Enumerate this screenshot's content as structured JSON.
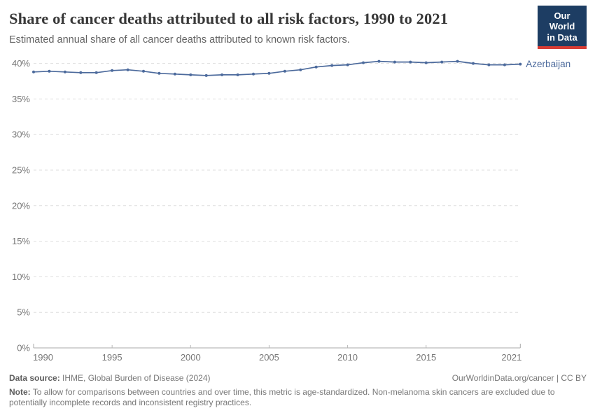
{
  "header": {
    "title": "Share of cancer deaths attributed to all risk factors, 1990 to 2021",
    "subtitle": "Estimated annual share of all cancer deaths attributed to known risk factors.",
    "logo": {
      "line1": "Our World",
      "line2": "in Data",
      "bg_color": "#1d3d63",
      "accent_color": "#d73c34"
    }
  },
  "chart_data": {
    "type": "line",
    "title": "Share of cancer deaths attributed to all risk factors, 1990 to 2021",
    "xlabel": "",
    "ylabel": "",
    "xlim": [
      1990,
      2021
    ],
    "ylim": [
      0,
      40
    ],
    "grid": "horizontal-dashed",
    "legend_position": "end-of-line",
    "y_tick_values": [
      0,
      5,
      10,
      15,
      20,
      25,
      30,
      35,
      40
    ],
    "y_tick_suffix": "%",
    "x_tick_values": [
      1990,
      1995,
      2000,
      2005,
      2010,
      2015,
      2021
    ],
    "x": [
      1990,
      1991,
      1992,
      1993,
      1994,
      1995,
      1996,
      1997,
      1998,
      1999,
      2000,
      2001,
      2002,
      2003,
      2004,
      2005,
      2006,
      2007,
      2008,
      2009,
      2010,
      2011,
      2012,
      2013,
      2014,
      2015,
      2016,
      2017,
      2018,
      2019,
      2020,
      2021
    ],
    "series": [
      {
        "name": "Azerbaijan",
        "color": "#4c6a9c",
        "values": [
          38.8,
          38.9,
          38.8,
          38.7,
          38.7,
          39.0,
          39.1,
          38.9,
          38.6,
          38.5,
          38.4,
          38.3,
          38.4,
          38.4,
          38.5,
          38.6,
          38.9,
          39.1,
          39.5,
          39.7,
          39.8,
          40.1,
          40.3,
          40.2,
          40.2,
          40.1,
          40.2,
          40.3,
          40.0,
          39.8,
          39.8,
          39.9
        ]
      }
    ]
  },
  "footer": {
    "source_label": "Data source:",
    "source_text": "IHME, Global Burden of Disease (2024)",
    "license_text": "OurWorldinData.org/cancer | CC BY",
    "note_label": "Note:",
    "note_text": "To allow for comparisons between countries and over time, this metric is age-standardized. Non-melanoma skin cancers are excluded due to potentially incomplete records and inconsistent registry practices."
  }
}
